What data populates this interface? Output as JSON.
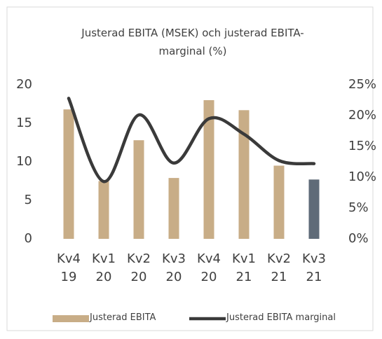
{
  "chart_data": {
    "type": "bar_line",
    "title": "Justerad EBITA (MSEK) och justerad EBITA-marginal (%)",
    "categories": [
      "Kv4 19",
      "Kv1 20",
      "Kv2 20",
      "Kv3 20",
      "Kv4 20",
      "Kv1 21",
      "Kv2 21",
      "Kv3 21"
    ],
    "series": [
      {
        "name": "Justerad EBITA",
        "type": "bar",
        "color": "#c8ad87",
        "colors": [
          "#c8ad87",
          "#c8ad87",
          "#c8ad87",
          "#c8ad87",
          "#c8ad87",
          "#c8ad87",
          "#c8ad87",
          "#5f6b78"
        ],
        "values": [
          16.8,
          7.5,
          12.8,
          7.9,
          18.0,
          16.7,
          9.5,
          7.7
        ]
      },
      {
        "name": "Justerad EBITA marginal",
        "type": "line",
        "axis": "y2",
        "color": "#3a3a3a",
        "values": [
          22.8,
          9.3,
          20.1,
          12.3,
          19.5,
          17.0,
          12.7,
          12.2
        ]
      }
    ],
    "ylim": [
      0,
      20
    ],
    "yticks": [
      0,
      5,
      10,
      15,
      20
    ],
    "y2lim": [
      0,
      25
    ],
    "y2ticks": [
      {
        "value": 0,
        "label": "0%"
      },
      {
        "value": 5,
        "label": "5%"
      },
      {
        "value": 10,
        "label": "10%"
      },
      {
        "value": 15,
        "label": "15%"
      },
      {
        "value": 20,
        "label": "20%"
      },
      {
        "value": 25,
        "label": "25%"
      }
    ],
    "grid": false,
    "legend": "bottom"
  }
}
